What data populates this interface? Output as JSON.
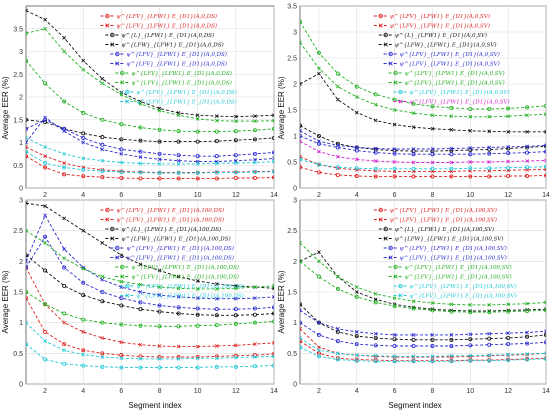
{
  "figure": {
    "ylabel": "Average EER (%)",
    "xlabel": "Segment index"
  },
  "chart_data": [
    {
      "type": "line",
      "panel": "top-left",
      "x": [
        1,
        2,
        3,
        4,
        5,
        6,
        7,
        8,
        9,
        10,
        11,
        12,
        13,
        14
      ],
      "xlim": [
        1,
        14
      ],
      "ylim": [
        0,
        4
      ],
      "yticks": [
        0,
        0.5,
        1,
        1.5,
        2,
        2.5,
        3,
        3.5
      ],
      "xticks": [
        2,
        4,
        6,
        8,
        10,
        12,
        14
      ],
      "grid": true,
      "legend_placement": "top",
      "series": [
        {
          "name": "ψ^{LFV}_{LFW1} E_{D1}(A,0,DS)",
          "color": "#e02020",
          "marker": "o",
          "values": [
            0.7,
            0.45,
            0.3,
            0.26,
            0.24,
            0.22,
            0.21,
            0.21,
            0.21,
            0.21,
            0.21,
            0.22,
            0.22,
            0.23
          ]
        },
        {
          "name": "ψ^{LFV}_{LFW1} E_{D1}(A,0,DS)",
          "color": "#e02020",
          "marker": "x",
          "values": [
            0.9,
            0.7,
            0.55,
            0.45,
            0.4,
            0.37,
            0.35,
            0.34,
            0.34,
            0.34,
            0.35,
            0.35,
            0.36,
            0.37
          ]
        },
        {
          "name": "ψ^{L}_{LFW1} E_{D1}(A,0,DS)",
          "color": "#111111",
          "marker": "o",
          "values": [
            1.5,
            1.45,
            1.3,
            1.2,
            1.12,
            1.07,
            1.04,
            1.02,
            1.02,
            1.02,
            1.03,
            1.05,
            1.07,
            1.1
          ]
        },
        {
          "name": "ψ^{LFW}_{LFW1} E_{D1}(A,0,DS)",
          "color": "#111111",
          "marker": "x",
          "values": [
            3.9,
            3.7,
            3.3,
            2.8,
            2.4,
            2.1,
            1.9,
            1.75,
            1.65,
            1.6,
            1.58,
            1.57,
            1.58,
            1.6
          ]
        },
        {
          "name": "ψ^{LFV}_{LFW1} E_{D1}(A,0,DS)",
          "color": "#2a2ad0",
          "marker": "o",
          "values": [
            1.3,
            1.5,
            1.3,
            1.1,
            0.95,
            0.85,
            0.8,
            0.75,
            0.72,
            0.7,
            0.7,
            0.72,
            0.75,
            0.78
          ]
        },
        {
          "name": "ψ^{LFV}_{LFW1} E_{D1}(A,0,DS)",
          "color": "#2a2ad0",
          "marker": "x",
          "values": [
            1.0,
            1.55,
            1.25,
            1.0,
            0.85,
            0.75,
            0.68,
            0.63,
            0.6,
            0.58,
            0.58,
            0.6,
            0.62,
            0.65
          ]
        },
        {
          "name": "ψ^{LFV}_{LFW1} E_{D1}(A,0,DS)",
          "color": "#20b020",
          "marker": "o",
          "values": [
            2.8,
            2.3,
            1.9,
            1.65,
            1.5,
            1.4,
            1.33,
            1.28,
            1.25,
            1.24,
            1.24,
            1.25,
            1.27,
            1.3
          ]
        },
        {
          "name": "ψ^{LFV}_{LFW1} E_{D1}(A,0,DS)",
          "color": "#20b020",
          "marker": "x",
          "values": [
            3.4,
            3.5,
            3.0,
            2.6,
            2.3,
            2.05,
            1.85,
            1.7,
            1.6,
            1.52,
            1.48,
            1.47,
            1.47,
            1.48
          ]
        },
        {
          "name": "ψ^{LFV}_{LFW1} E_{D1}(A,0,DS)",
          "color": "#20c8d8",
          "marker": "o",
          "values": [
            0.8,
            0.55,
            0.45,
            0.4,
            0.37,
            0.35,
            0.34,
            0.33,
            0.33,
            0.33,
            0.34,
            0.34,
            0.35,
            0.36
          ]
        },
        {
          "name": "ψ^{LFV}_{LFW1} E_{D1}(A,0,DS)",
          "color": "#20c8d8",
          "marker": "x",
          "values": [
            1.1,
            0.9,
            0.75,
            0.65,
            0.6,
            0.56,
            0.54,
            0.53,
            0.53,
            0.53,
            0.54,
            0.55,
            0.56,
            0.58
          ]
        }
      ]
    },
    {
      "type": "line",
      "panel": "top-right",
      "x": [
        1,
        2,
        3,
        4,
        5,
        6,
        7,
        8,
        9,
        10,
        11,
        12,
        13,
        14
      ],
      "xlim": [
        1,
        14
      ],
      "ylim": [
        0,
        3.5
      ],
      "yticks": [
        0,
        0.5,
        1,
        1.5,
        2,
        2.5,
        3,
        3.5
      ],
      "xticks": [
        2,
        4,
        6,
        8,
        10,
        12,
        14
      ],
      "grid": true,
      "legend_placement": "top",
      "series": [
        {
          "name": "ψ^{LFV}_{LFW1} E_{D1}(A,0,SV)",
          "color": "#e02020",
          "marker": "o",
          "values": [
            0.4,
            0.3,
            0.25,
            0.23,
            0.22,
            0.22,
            0.22,
            0.22,
            0.22,
            0.22,
            0.22,
            0.23,
            0.23,
            0.24
          ]
        },
        {
          "name": "ψ^{LFV}_{LFW1} E_{D1}(A,0,SV)",
          "color": "#e02020",
          "marker": "x",
          "values": [
            0.6,
            0.45,
            0.38,
            0.35,
            0.33,
            0.32,
            0.32,
            0.32,
            0.32,
            0.33,
            0.33,
            0.34,
            0.35,
            0.36
          ]
        },
        {
          "name": "ψ^{L}_{LFW1} E_{D1}(A,0,SV)",
          "color": "#111111",
          "marker": "o",
          "values": [
            1.2,
            1.0,
            0.85,
            0.78,
            0.74,
            0.72,
            0.71,
            0.71,
            0.72,
            0.73,
            0.74,
            0.76,
            0.78,
            0.8
          ]
        },
        {
          "name": "ψ^{LFW}_{LFW1} E_{D1}(A,0,SV)",
          "color": "#111111",
          "marker": "x",
          "values": [
            2.0,
            2.2,
            1.7,
            1.45,
            1.3,
            1.22,
            1.17,
            1.14,
            1.12,
            1.1,
            1.09,
            1.08,
            1.08,
            1.08
          ]
        },
        {
          "name": "ψ^{LFV}_{LFW1} E_{D1}(A,0,SV)",
          "color": "#2a2ad0",
          "marker": "o",
          "values": [
            1.0,
            0.85,
            0.78,
            0.72,
            0.68,
            0.66,
            0.65,
            0.65,
            0.65,
            0.65,
            0.66,
            0.67,
            0.68,
            0.7
          ]
        },
        {
          "name": "ψ^{LFV}_{LFW1} E_{D1}(A,0,SV)",
          "color": "#2a2ad0",
          "marker": "x",
          "values": [
            1.1,
            0.9,
            0.82,
            0.78,
            0.76,
            0.75,
            0.75,
            0.75,
            0.76,
            0.77,
            0.78,
            0.79,
            0.8,
            0.82
          ]
        },
        {
          "name": "ψ^{LFV}_{LFW1} E_{D1}(A,0,SV)",
          "color": "#20b020",
          "marker": "o",
          "values": [
            3.2,
            2.6,
            2.2,
            1.95,
            1.8,
            1.7,
            1.62,
            1.57,
            1.54,
            1.52,
            1.52,
            1.53,
            1.55,
            1.58
          ]
        },
        {
          "name": "ψ^{LFV}_{LFW1} E_{D1}(A,0,SV)",
          "color": "#20b020",
          "marker": "x",
          "values": [
            2.8,
            2.3,
            1.95,
            1.75,
            1.6,
            1.5,
            1.44,
            1.4,
            1.38,
            1.37,
            1.37,
            1.38,
            1.4,
            1.42
          ]
        },
        {
          "name": "ψ^{LFV}_{LFW1} E_{D1}(A,0,SV)",
          "color": "#20c8d8",
          "marker": "o",
          "values": [
            0.55,
            0.45,
            0.4,
            0.38,
            0.37,
            0.37,
            0.37,
            0.37,
            0.37,
            0.38,
            0.38,
            0.39,
            0.4,
            0.41
          ]
        },
        {
          "name": "ψ^{LFV}_{LFW1} E_{D1}(A,0,SV)",
          "color": "#d020d0",
          "marker": "x",
          "values": [
            0.9,
            0.7,
            0.6,
            0.55,
            0.52,
            0.5,
            0.49,
            0.49,
            0.49,
            0.5,
            0.5,
            0.51,
            0.52,
            0.53
          ]
        }
      ]
    },
    {
      "type": "line",
      "panel": "bottom-left",
      "x": [
        1,
        2,
        3,
        4,
        5,
        6,
        7,
        8,
        9,
        10,
        11,
        12,
        13,
        14
      ],
      "xlim": [
        1,
        14
      ],
      "ylim": [
        0,
        3
      ],
      "yticks": [
        0,
        0.5,
        1,
        1.5,
        2,
        2.5,
        3
      ],
      "xticks": [
        2,
        4,
        6,
        8,
        10,
        12,
        14
      ],
      "grid": true,
      "legend_placement": "top",
      "series": [
        {
          "name": "ψ^{LFV}_{LFW1} E_{D1}(A,100,DS)",
          "color": "#e02020",
          "marker": "o",
          "values": [
            1.4,
            0.85,
            0.65,
            0.55,
            0.5,
            0.47,
            0.45,
            0.44,
            0.44,
            0.44,
            0.45,
            0.46,
            0.47,
            0.49
          ]
        },
        {
          "name": "ψ^{LFV}_{LFW1} E_{D1}(A,100,DS)",
          "color": "#e02020",
          "marker": "x",
          "values": [
            1.9,
            1.3,
            1.0,
            0.85,
            0.75,
            0.68,
            0.64,
            0.62,
            0.61,
            0.61,
            0.62,
            0.63,
            0.65,
            0.67
          ]
        },
        {
          "name": "ψ^{L}_{LFW1} E_{D1}(A,100,DS)",
          "color": "#111111",
          "marker": "o",
          "values": [
            2.1,
            1.85,
            1.6,
            1.45,
            1.35,
            1.28,
            1.22,
            1.18,
            1.15,
            1.13,
            1.12,
            1.12,
            1.13,
            1.15
          ]
        },
        {
          "name": "ψ^{LFW}_{LFW1} E_{D1}(A,100,DS)",
          "color": "#111111",
          "marker": "x",
          "values": [
            2.95,
            2.9,
            2.7,
            2.5,
            2.3,
            2.1,
            1.95,
            1.85,
            1.75,
            1.68,
            1.63,
            1.6,
            1.58,
            1.56
          ]
        },
        {
          "name": "ψ^{LFV}_{LFW1} E_{D1}(A,100,DS)",
          "color": "#2a2ad0",
          "marker": "o",
          "values": [
            1.9,
            2.4,
            1.9,
            1.65,
            1.5,
            1.4,
            1.33,
            1.28,
            1.25,
            1.23,
            1.22,
            1.22,
            1.23,
            1.25
          ]
        },
        {
          "name": "ψ^{LFV}_{LFW1} E_{D1}(A,100,DS)",
          "color": "#2a2ad0",
          "marker": "x",
          "values": [
            2.0,
            2.75,
            2.2,
            1.9,
            1.7,
            1.58,
            1.5,
            1.45,
            1.42,
            1.4,
            1.39,
            1.39,
            1.4,
            1.42
          ]
        },
        {
          "name": "ψ^{LFV}_{LFW1} E_{D1}(A,100,DS)",
          "color": "#20b020",
          "marker": "o",
          "values": [
            1.5,
            1.3,
            1.15,
            1.05,
            1.0,
            0.97,
            0.95,
            0.94,
            0.94,
            0.95,
            0.96,
            0.98,
            1.0,
            1.02
          ]
        },
        {
          "name": "ψ^{LFV}_{LFW1} E_{D1}(A,100,DS)",
          "color": "#20b020",
          "marker": "x",
          "values": [
            2.5,
            2.3,
            2.05,
            1.88,
            1.75,
            1.67,
            1.62,
            1.58,
            1.56,
            1.55,
            1.55,
            1.56,
            1.58,
            1.6
          ]
        },
        {
          "name": "ψ^{LFV}_{LFW1} E_{D1}(A,100,DS)",
          "color": "#20c8d8",
          "marker": "o",
          "values": [
            0.65,
            0.4,
            0.33,
            0.3,
            0.28,
            0.27,
            0.27,
            0.27,
            0.27,
            0.27,
            0.28,
            0.28,
            0.29,
            0.3
          ]
        },
        {
          "name": "ψ^{LFV}_{LFW1} E_{D1}(A,100,DS)",
          "color": "#20c8d8",
          "marker": "x",
          "values": [
            1.0,
            0.7,
            0.55,
            0.48,
            0.44,
            0.42,
            0.41,
            0.41,
            0.41,
            0.42,
            0.42,
            0.43,
            0.44,
            0.45
          ]
        }
      ]
    },
    {
      "type": "line",
      "panel": "bottom-right",
      "x": [
        1,
        2,
        3,
        4,
        5,
        6,
        7,
        8,
        9,
        10,
        11,
        12,
        13,
        14
      ],
      "xlim": [
        1,
        14
      ],
      "ylim": [
        0,
        3
      ],
      "yticks": [
        0,
        0.5,
        1,
        1.5,
        2,
        2.5,
        3
      ],
      "xticks": [
        2,
        4,
        6,
        8,
        10,
        12,
        14
      ],
      "grid": true,
      "legend_placement": "top",
      "series": [
        {
          "name": "ψ^{LFV}_{LFW1} E_{D1}(A,100,SV)",
          "color": "#e02020",
          "marker": "o",
          "values": [
            0.7,
            0.5,
            0.42,
            0.4,
            0.39,
            0.38,
            0.38,
            0.38,
            0.38,
            0.39,
            0.39,
            0.4,
            0.41,
            0.42
          ]
        },
        {
          "name": "ψ^{LFV}_{LFW1} E_{D1}(A,100,SV)",
          "color": "#e02020",
          "marker": "x",
          "values": [
            0.9,
            0.6,
            0.5,
            0.47,
            0.45,
            0.44,
            0.44,
            0.44,
            0.44,
            0.45,
            0.46,
            0.47,
            0.48,
            0.5
          ]
        },
        {
          "name": "ψ^{L}_{LFW1} E_{D1}(A,100,SV)",
          "color": "#111111",
          "marker": "o",
          "values": [
            1.3,
            1.0,
            0.85,
            0.78,
            0.75,
            0.73,
            0.72,
            0.72,
            0.72,
            0.73,
            0.74,
            0.75,
            0.77,
            0.8
          ]
        },
        {
          "name": "ψ^{LFW}_{LFW1} E_{D1}(A,100,SV)",
          "color": "#111111",
          "marker": "x",
          "values": [
            2.0,
            2.15,
            1.75,
            1.5,
            1.38,
            1.3,
            1.25,
            1.22,
            1.2,
            1.19,
            1.19,
            1.2,
            1.21,
            1.22
          ]
        },
        {
          "name": "ψ^{LFV}_{LFW1} E_{D1}(A,100,SV)",
          "color": "#2a2ad0",
          "marker": "o",
          "values": [
            1.0,
            0.8,
            0.7,
            0.65,
            0.63,
            0.62,
            0.62,
            0.62,
            0.62,
            0.63,
            0.64,
            0.65,
            0.66,
            0.68
          ]
        },
        {
          "name": "ψ^{LFV}_{LFW1} E_{D1}(A,100,SV)",
          "color": "#2a2ad0",
          "marker": "x",
          "values": [
            1.2,
            1.0,
            0.9,
            0.85,
            0.82,
            0.8,
            0.8,
            0.8,
            0.8,
            0.81,
            0.82,
            0.83,
            0.84,
            0.86
          ]
        },
        {
          "name": "ψ^{LFV}_{LFW1} E_{D1}(A,100,SV)",
          "color": "#20b020",
          "marker": "o",
          "values": [
            2.0,
            1.75,
            1.55,
            1.42,
            1.33,
            1.27,
            1.23,
            1.2,
            1.18,
            1.17,
            1.17,
            1.18,
            1.19,
            1.2
          ]
        },
        {
          "name": "ψ^{LFV}_{LFW1} E_{D1}(A,100,SV)",
          "color": "#20b020",
          "marker": "x",
          "values": [
            2.3,
            2.0,
            1.75,
            1.58,
            1.47,
            1.4,
            1.35,
            1.32,
            1.3,
            1.29,
            1.29,
            1.3,
            1.31,
            1.33
          ]
        },
        {
          "name": "ψ^{LFV}_{LFW1} E_{D1}(A,100,SV)",
          "color": "#20c8d8",
          "marker": "o",
          "values": [
            0.6,
            0.45,
            0.4,
            0.38,
            0.37,
            0.37,
            0.37,
            0.37,
            0.37,
            0.38,
            0.38,
            0.39,
            0.4,
            0.41
          ]
        },
        {
          "name": "ψ^{LFV}_{LFW1} E_{D1}(A,100,SV)",
          "color": "#20c8d8",
          "marker": "x",
          "values": [
            0.75,
            0.55,
            0.5,
            0.47,
            0.46,
            0.45,
            0.45,
            0.45,
            0.46,
            0.46,
            0.47,
            0.48,
            0.49,
            0.5
          ]
        }
      ]
    }
  ]
}
